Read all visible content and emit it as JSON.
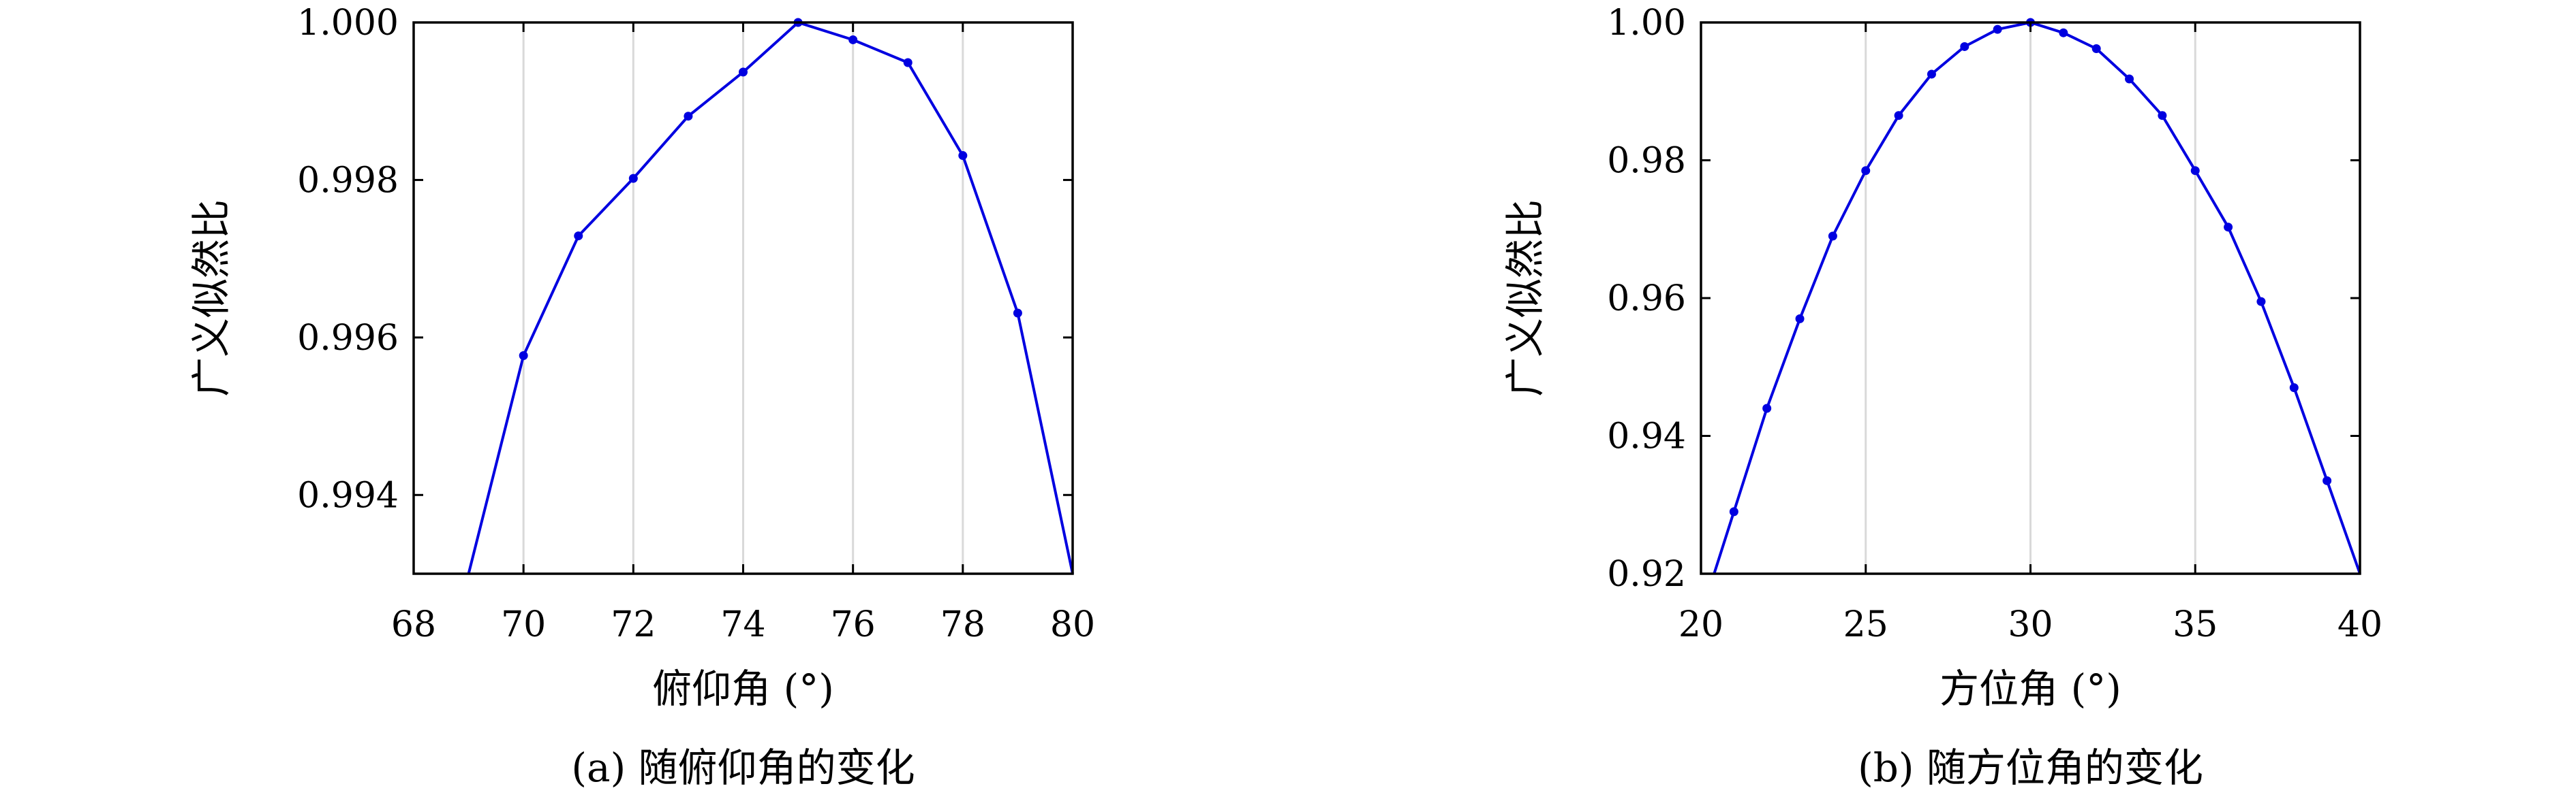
{
  "colors": {
    "series": "#0000e0",
    "grid": "#d9d9d9",
    "axis": "#000000"
  },
  "chart_data": [
    {
      "type": "line",
      "caption": "(a) 随俯仰角的变化",
      "xlabel": "俯仰角 (°)",
      "ylabel": "广义似然比",
      "xlim": [
        68,
        80
      ],
      "ylim": [
        0.993,
        1.0
      ],
      "xticks": [
        "68",
        "70",
        "72",
        "74",
        "76",
        "78",
        "80"
      ],
      "yticks": [
        "0.994",
        "0.996",
        "0.998",
        "1.000"
      ],
      "grid": "vertical",
      "series": [
        {
          "x": [
            69,
            70,
            71,
            72,
            73,
            74,
            75,
            76,
            77,
            78,
            79,
            80
          ],
          "y": [
            0.993,
            0.99577,
            0.99729,
            0.99802,
            0.99881,
            0.99937,
            1.0,
            0.99978,
            0.99949,
            0.99831,
            0.99631,
            0.993
          ],
          "markers": [
            false,
            true,
            true,
            true,
            true,
            true,
            true,
            true,
            true,
            true,
            true,
            false
          ]
        }
      ]
    },
    {
      "type": "line",
      "caption": "(b) 随方位角的变化",
      "xlabel": "方位角 (°)",
      "ylabel": "广义似然比",
      "xlim": [
        20,
        40
      ],
      "ylim": [
        0.92,
        1.0
      ],
      "xticks": [
        "20",
        "25",
        "30",
        "35",
        "40"
      ],
      "yticks": [
        "0.92",
        "0.94",
        "0.96",
        "0.98",
        "1.00"
      ],
      "grid": "vertical",
      "series": [
        {
          "x": [
            20.4,
            21,
            22,
            23,
            24,
            25,
            26,
            27,
            28,
            29,
            30,
            31,
            32,
            33,
            34,
            35,
            36,
            37,
            38,
            39,
            40
          ],
          "y": [
            0.92,
            0.929,
            0.944,
            0.957,
            0.969,
            0.9785,
            0.9865,
            0.9925,
            0.9965,
            0.999,
            1.0,
            0.9985,
            0.9962,
            0.9918,
            0.9865,
            0.9785,
            0.9703,
            0.9595,
            0.947,
            0.9335,
            0.92
          ],
          "markers": [
            false,
            true,
            true,
            true,
            true,
            true,
            true,
            true,
            true,
            true,
            true,
            true,
            true,
            true,
            true,
            true,
            true,
            true,
            true,
            true,
            false
          ]
        }
      ]
    }
  ]
}
